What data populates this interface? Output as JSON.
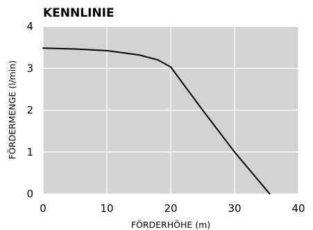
{
  "chart_data": {
    "type": "line",
    "title": "KENNLINIE",
    "xlabel": "FÖRDERHÖHE (m)",
    "ylabel": "FÖRDERMENGE (l/min)",
    "xlim": [
      0,
      40
    ],
    "ylim": [
      0,
      4
    ],
    "xticks": [
      0,
      10,
      20,
      30,
      40
    ],
    "yticks": [
      0,
      1,
      2,
      3,
      4
    ],
    "grid": true,
    "series": [
      {
        "x": [
          0,
          5,
          10,
          15,
          18,
          20,
          25,
          30,
          35.5
        ],
        "y": [
          3.48,
          3.46,
          3.42,
          3.32,
          3.2,
          3.03,
          2.0,
          1.0,
          0.0
        ]
      }
    ],
    "colors": {
      "plot_background": "#d3d3d3",
      "grid": "#ffffff",
      "line": "#000000"
    }
  }
}
